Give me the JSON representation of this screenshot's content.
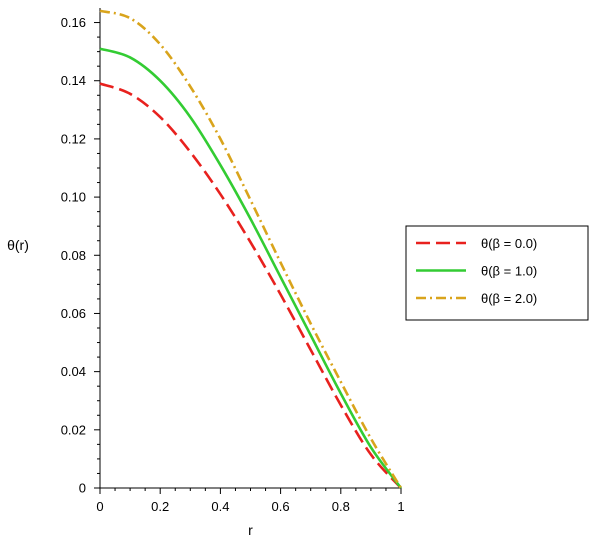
{
  "chart_data": {
    "type": "line",
    "title": "",
    "xlabel": "r",
    "ylabel": "θ(r)",
    "xlim": [
      0,
      1
    ],
    "ylim": [
      0,
      0.165
    ],
    "xticks": [
      0,
      0.2,
      0.4,
      0.6,
      0.8,
      1
    ],
    "xtick_labels": [
      "0",
      "0.2",
      "0.4",
      "0.6",
      "0.8",
      "1"
    ],
    "yticks": [
      0,
      0.02,
      0.04,
      0.06,
      0.08,
      0.1,
      0.12,
      0.14,
      0.16
    ],
    "ytick_labels": [
      "0",
      "0.02",
      "0.04",
      "0.06",
      "0.08",
      "0.10",
      "0.12",
      "0.14",
      "0.16"
    ],
    "grid": false,
    "legend_position": "right",
    "series": [
      {
        "name": "θ(β = 0.0)",
        "color": "#e8211e",
        "style": "dashed",
        "x": [
          0,
          0.1,
          0.2,
          0.3,
          0.4,
          0.5,
          0.6,
          0.7,
          0.8,
          0.9,
          1.0
        ],
        "y": [
          0.139,
          0.1355,
          0.1275,
          0.1155,
          0.101,
          0.0845,
          0.0665,
          0.0475,
          0.0285,
          0.0115,
          0
        ]
      },
      {
        "name": "θ(β = 1.0)",
        "color": "#33cc33",
        "style": "solid",
        "x": [
          0,
          0.1,
          0.2,
          0.3,
          0.4,
          0.5,
          0.6,
          0.7,
          0.8,
          0.9,
          1.0
        ],
        "y": [
          0.151,
          0.148,
          0.14,
          0.1275,
          0.111,
          0.0925,
          0.0725,
          0.0525,
          0.0325,
          0.014,
          0
        ]
      },
      {
        "name": "θ(β = 2.0)",
        "color": "#d9a41c",
        "style": "dashdot",
        "x": [
          0,
          0.1,
          0.2,
          0.3,
          0.4,
          0.5,
          0.6,
          0.7,
          0.8,
          0.9,
          1.0
        ],
        "y": [
          0.164,
          0.1615,
          0.1525,
          0.138,
          0.12,
          0.099,
          0.0775,
          0.0565,
          0.0365,
          0.017,
          0
        ]
      }
    ]
  }
}
